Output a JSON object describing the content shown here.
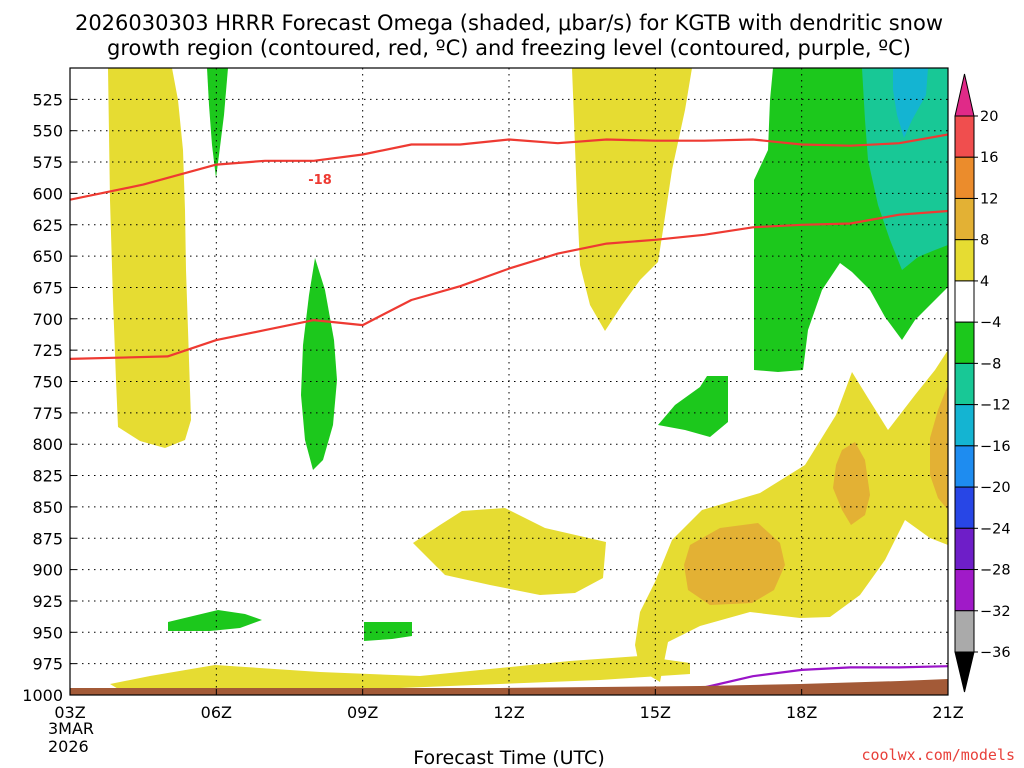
{
  "chart_data": {
    "type": "contour",
    "title_lines": [
      "2026030303 HRRR Forecast Omega (shaded, μbar/s) for KGTB with dendritic snow",
      "growth region (contoured, red, ºC) and freezing level (contoured, purple, ºC)"
    ],
    "xlabel": "Forecast Time (UTC)",
    "x_ticks": [
      "03Z",
      "06Z",
      "09Z",
      "12Z",
      "15Z",
      "18Z",
      "21Z"
    ],
    "x_sublabels": [
      "3MAR",
      "2026"
    ],
    "x_range_hours": [
      3,
      21
    ],
    "y_ticks": [
      525,
      550,
      575,
      600,
      625,
      650,
      675,
      700,
      725,
      750,
      775,
      800,
      825,
      850,
      875,
      900,
      925,
      950,
      975,
      1000
    ],
    "y_range": [
      500,
      1000
    ],
    "colorbar": {
      "labels": [
        "20",
        "16",
        "12",
        "8",
        "4",
        "−4",
        "−8",
        "−12",
        "−16",
        "−20",
        "−24",
        "−28",
        "−32",
        "−36"
      ],
      "colors": [
        "#e02a88",
        "#f04e4e",
        "#eb8c2c",
        "#e3b134",
        "#e6dc32",
        "#ffffff",
        "#1cc81c",
        "#18c896",
        "#14b4d2",
        "#1e8cf0",
        "#2846e6",
        "#6e1ec8",
        "#a01ac8",
        "#aaaaaa",
        "#000000"
      ]
    },
    "contours": [
      {
        "name": "dendritic growth -18",
        "label": "-18",
        "color": "#ee3a32",
        "x": [
          3,
          4.5,
          6,
          7,
          8,
          9,
          10,
          11,
          12,
          13,
          14,
          15,
          16,
          17,
          18,
          19,
          20,
          21
        ],
        "y": [
          605,
          593,
          577,
          574,
          574,
          569,
          561,
          561,
          557,
          560,
          557,
          558,
          558,
          557,
          561,
          562,
          560,
          553
        ]
      },
      {
        "name": "dendritic growth -12",
        "color": "#ee3a32",
        "x": [
          3,
          5,
          6,
          7,
          8,
          9,
          10,
          11,
          12,
          13,
          14,
          15,
          16,
          17,
          18,
          19,
          20,
          21
        ],
        "y": [
          732,
          730,
          717,
          709,
          701,
          705,
          685,
          674,
          660,
          648,
          640,
          637,
          633,
          627,
          625,
          624,
          617,
          614
        ]
      },
      {
        "name": "freezing level 0",
        "color": "#9a14c8",
        "x": [
          15.7,
          16,
          17,
          18,
          19,
          20,
          21
        ],
        "y": [
          1000,
          994,
          985,
          980,
          978,
          978,
          977
        ]
      }
    ],
    "terrain_color": "#a35a37"
  },
  "credit": "coolwx.com/models"
}
